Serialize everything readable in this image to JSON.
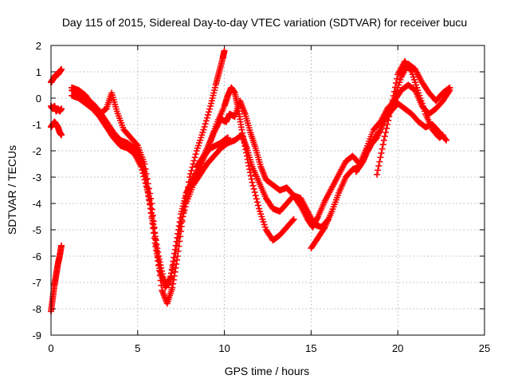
{
  "chart_data": {
    "type": "scatter",
    "title": "Day 115 of 2015, Sidereal Day-to-day VTEC variation (SDTVAR) for receiver bucu",
    "xlabel": "GPS time / hours",
    "ylabel": "SDTVAR / TECUs",
    "xlim": [
      0,
      25
    ],
    "ylim": [
      -9,
      2
    ],
    "xticks": [
      "0",
      "5",
      "10",
      "15",
      "20",
      "25"
    ],
    "yticks": [
      "-9",
      "-8",
      "-7",
      "-6",
      "-5",
      "-4",
      "-3",
      "-2",
      "-1",
      "0",
      "1",
      "2"
    ],
    "grid": true,
    "marker": "plus",
    "color": "#ff0000",
    "series": [
      {
        "x": [
          0.0,
          0.1,
          0.2,
          0.3,
          0.4,
          0.5,
          0.6
        ],
        "y": [
          0.6,
          0.7,
          0.8,
          0.9,
          0.9,
          1.0,
          1.1
        ]
      },
      {
        "x": [
          0.0,
          0.1,
          0.2,
          0.3,
          0.4,
          0.5,
          0.6
        ],
        "y": [
          -0.3,
          -0.4,
          -0.3,
          -0.5,
          -0.4,
          -0.5,
          -0.4
        ]
      },
      {
        "x": [
          0.0,
          0.1,
          0.2,
          0.3,
          0.4,
          0.5,
          0.6
        ],
        "y": [
          -1.1,
          -1.0,
          -0.9,
          -1.0,
          -1.1,
          -1.3,
          -1.4
        ]
      },
      {
        "x": [
          0.0,
          0.1,
          0.2,
          0.3,
          0.4,
          0.5,
          0.6
        ],
        "y": [
          -8.1,
          -7.6,
          -7.1,
          -6.7,
          -6.3,
          -6.0,
          -5.6
        ]
      },
      {
        "x": [
          1.2,
          1.6,
          2.0,
          2.4,
          2.8,
          3.2,
          3.5,
          3.8,
          4.2,
          4.6,
          5.0,
          5.4,
          5.8,
          6.1,
          6.4,
          6.7,
          7.0,
          7.3,
          7.6,
          8.0,
          8.4,
          8.8,
          9.2,
          9.5,
          9.7,
          9.9,
          10.0
        ],
        "y": [
          0.4,
          0.3,
          0.1,
          -0.3,
          -0.6,
          -0.4,
          0.2,
          -0.5,
          -1.2,
          -1.5,
          -1.8,
          -2.5,
          -4.0,
          -5.8,
          -7.3,
          -7.8,
          -7.2,
          -6.0,
          -4.5,
          -3.0,
          -2.0,
          -1.2,
          -0.3,
          0.5,
          1.0,
          1.5,
          1.8
        ]
      },
      {
        "x": [
          1.2,
          1.6,
          2.0,
          2.4,
          2.8,
          3.2,
          3.6,
          4.0,
          4.4,
          4.8,
          5.1,
          5.4,
          5.7,
          6.0,
          6.3,
          6.6,
          6.9,
          7.2,
          7.5,
          7.8,
          8.1,
          8.4,
          8.8,
          9.2,
          9.6,
          10.0,
          10.2,
          10.4,
          10.6,
          10.8,
          11.0,
          11.3,
          11.6,
          12.0,
          12.4,
          12.8,
          13.2,
          13.6,
          14.0
        ],
        "y": [
          0.3,
          0.2,
          0.0,
          -0.2,
          -0.5,
          -0.9,
          -1.3,
          -1.6,
          -1.7,
          -1.9,
          -2.2,
          -2.8,
          -4.0,
          -5.5,
          -6.6,
          -7.2,
          -6.8,
          -5.6,
          -4.4,
          -3.6,
          -3.2,
          -2.8,
          -2.2,
          -1.6,
          -0.9,
          -0.3,
          0.1,
          0.4,
          0.2,
          -0.4,
          -1.2,
          -2.2,
          -3.2,
          -4.2,
          -5.0,
          -5.4,
          -5.2,
          -4.9,
          -4.6
        ]
      },
      {
        "x": [
          1.2,
          1.6,
          2.0,
          2.4,
          2.8,
          3.2,
          3.6,
          4.0,
          4.4,
          4.8,
          5.2,
          5.6,
          5.9,
          6.2,
          6.5,
          6.8,
          7.1,
          7.4,
          7.8,
          8.2,
          8.6,
          9.0,
          9.4,
          9.8,
          10.2,
          10.6,
          11.0,
          11.3,
          11.6,
          12.0,
          12.4,
          12.8,
          13.2,
          13.6,
          14.0,
          14.4,
          14.8,
          15.2,
          15.6,
          16.0
        ],
        "y": [
          0.1,
          0.0,
          -0.2,
          -0.4,
          -0.7,
          -1.1,
          -1.5,
          -1.8,
          -1.9,
          -2.1,
          -2.6,
          -3.6,
          -4.8,
          -6.0,
          -6.9,
          -7.1,
          -6.2,
          -5.0,
          -4.0,
          -3.3,
          -2.9,
          -2.5,
          -2.2,
          -1.9,
          -1.7,
          -1.6,
          -1.4,
          -1.9,
          -2.6,
          -3.2,
          -3.8,
          -4.2,
          -4.3,
          -4.0,
          -3.7,
          -3.8,
          -4.3,
          -4.8,
          -4.9,
          -4.6
        ]
      },
      {
        "x": [
          8.4,
          8.8,
          9.2,
          9.5,
          9.8,
          10.0,
          10.2
        ],
        "y": [
          -2.6,
          -2.2,
          -1.9,
          -1.8,
          -1.7,
          -1.6,
          -1.5
        ]
      },
      {
        "x": [
          8.2,
          8.6,
          9.0,
          9.4,
          9.8,
          10.1,
          10.3,
          10.6,
          10.9,
          11.2,
          11.5,
          11.8,
          12.1,
          12.4,
          12.8,
          13.2,
          13.6,
          14.0,
          14.4,
          14.8,
          15.1,
          15.4,
          15.8,
          16.2,
          16.6,
          17.0,
          17.4,
          17.8,
          18.2,
          18.6,
          19.0,
          19.4,
          19.8,
          20.2,
          20.6,
          21.0,
          21.4,
          21.8,
          22.2,
          22.6,
          23.0
        ],
        "y": [
          -3.2,
          -2.6,
          -2.0,
          -1.3,
          -0.8,
          -0.9,
          -0.6,
          -0.7,
          -0.1,
          -0.6,
          -1.3,
          -1.9,
          -2.6,
          -3.1,
          -3.3,
          -3.5,
          -3.4,
          -3.7,
          -4.1,
          -4.6,
          -4.9,
          -4.5,
          -3.9,
          -3.4,
          -2.9,
          -2.4,
          -2.2,
          -2.5,
          -1.9,
          -1.2,
          -0.9,
          -0.4,
          -0.1,
          0.3,
          0.5,
          0.3,
          -0.3,
          -0.6,
          -0.4,
          -0.1,
          0.3
        ]
      },
      {
        "x": [
          15.0,
          15.4,
          15.8,
          16.2,
          16.6,
          17.0,
          17.4,
          17.8,
          18.2,
          18.6,
          19.0,
          19.4,
          19.8,
          20.2,
          20.6,
          21.0,
          21.4,
          21.8,
          22.2,
          22.6,
          23.0
        ],
        "y": [
          -5.7,
          -5.3,
          -4.9,
          -4.3,
          -3.6,
          -3.0,
          -2.7,
          -2.6,
          -2.1,
          -1.6,
          -1.2,
          -0.6,
          0.0,
          0.8,
          1.3,
          1.1,
          0.6,
          0.2,
          -0.1,
          0.2,
          0.4
        ]
      },
      {
        "x": [
          17.6,
          18.0,
          18.4,
          18.8,
          19.2,
          19.6,
          20.0,
          20.4,
          20.8,
          21.2,
          21.6,
          22.0,
          22.4,
          22.8
        ],
        "y": [
          -2.8,
          -2.4,
          -1.8,
          -1.5,
          -0.9,
          -0.5,
          -0.2,
          -0.4,
          -0.6,
          -0.9,
          -1.1,
          -1.0,
          -1.3,
          -1.6
        ]
      },
      {
        "x": [
          18.8,
          19.2,
          19.6,
          20.0,
          20.4,
          20.8,
          21.2,
          21.6,
          22.0,
          22.4,
          22.6
        ],
        "y": [
          -2.9,
          -1.6,
          -0.4,
          0.9,
          1.4,
          1.0,
          0.2,
          -0.6,
          -1.2,
          -1.5,
          -1.4
        ]
      }
    ]
  }
}
